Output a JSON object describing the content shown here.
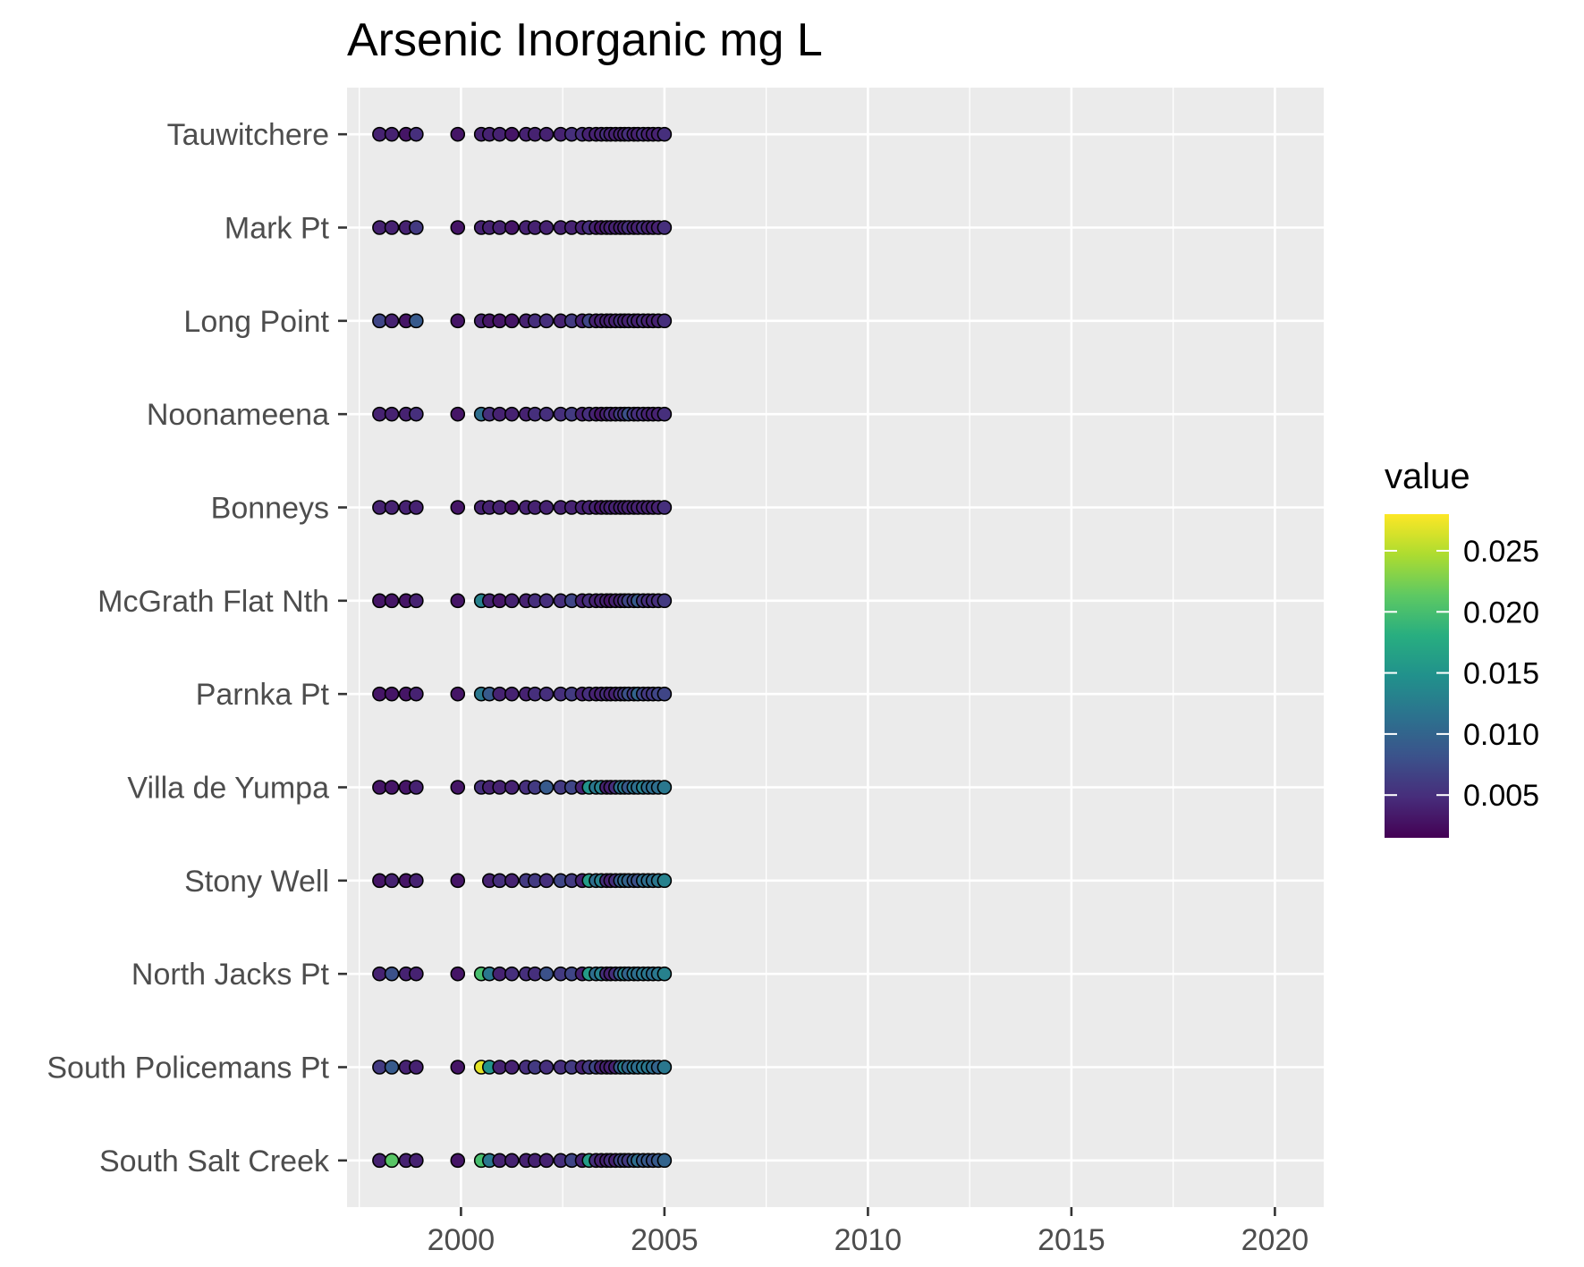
{
  "chart_data": {
    "type": "scatter",
    "title": "Arsenic Inorganic mg L",
    "xlabel": "",
    "ylabel": "",
    "xlim": [
      1997.2,
      2021.2
    ],
    "x_ticks": [
      2000,
      2005,
      2010,
      2015,
      2020
    ],
    "x_tick_labels": [
      "2000",
      "2005",
      "2010",
      "2015",
      "2020"
    ],
    "sites": [
      "Tauwitchere",
      "Mark Pt",
      "Long Point",
      "Noonameena",
      "Bonneys",
      "McGrath Flat Nth",
      "Parnka Pt",
      "Villa de Yumpa",
      "Stony Well",
      "North Jacks Pt",
      "South Policemans Pt",
      "South Salt Creek"
    ],
    "sample_dates": [
      1998.0,
      1998.3,
      1998.65,
      1998.9,
      1999.92,
      2000.5,
      2000.7,
      2000.95,
      2001.25,
      2001.6,
      2001.82,
      2002.1,
      2002.45,
      2002.72,
      2002.98,
      2003.15,
      2003.32,
      2003.45,
      2003.58,
      2003.68,
      2003.8,
      2003.92,
      2004.02,
      2004.12,
      2004.25,
      2004.35,
      2004.48,
      2004.6,
      2004.72,
      2004.85,
      2005.0
    ],
    "values": {
      "Tauwitchere": [
        0.004,
        0.004,
        0.003,
        0.005,
        0.003,
        0.004,
        0.004,
        0.004,
        0.003,
        0.004,
        0.004,
        0.004,
        0.004,
        0.005,
        0.005,
        0.004,
        0.004,
        0.004,
        0.005,
        0.004,
        0.004,
        0.004,
        0.004,
        0.005,
        0.004,
        0.004,
        0.005,
        0.004,
        0.004,
        0.004,
        0.005
      ],
      "Mark Pt": [
        0.004,
        0.004,
        0.004,
        0.006,
        0.003,
        0.004,
        0.004,
        0.004,
        0.003,
        0.004,
        0.004,
        0.004,
        0.004,
        0.004,
        0.004,
        0.005,
        0.004,
        0.003,
        0.004,
        0.004,
        0.004,
        0.004,
        0.004,
        0.005,
        0.004,
        0.004,
        0.005,
        0.004,
        0.004,
        0.004,
        0.005
      ],
      "Long Point": [
        0.007,
        0.004,
        0.003,
        0.009,
        0.003,
        0.004,
        0.003,
        0.003,
        0.003,
        0.004,
        0.005,
        0.005,
        0.004,
        0.006,
        0.004,
        0.007,
        0.004,
        0.004,
        0.004,
        0.004,
        0.004,
        0.005,
        0.004,
        0.004,
        0.005,
        0.004,
        0.005,
        0.004,
        0.004,
        0.004,
        0.005
      ],
      "Noonameena": [
        0.004,
        0.004,
        0.004,
        0.005,
        0.003,
        0.011,
        0.005,
        0.004,
        0.004,
        0.004,
        0.005,
        0.005,
        0.005,
        0.006,
        0.004,
        0.005,
        0.004,
        0.003,
        0.004,
        0.005,
        0.004,
        0.006,
        0.005,
        0.008,
        0.006,
        0.005,
        0.005,
        0.004,
        0.004,
        0.004,
        0.005
      ],
      "Bonneys": [
        0.004,
        0.004,
        0.004,
        0.004,
        0.003,
        0.004,
        0.004,
        0.004,
        0.003,
        0.004,
        0.004,
        0.004,
        0.004,
        0.004,
        0.004,
        0.004,
        0.004,
        0.003,
        0.004,
        0.004,
        0.004,
        0.004,
        0.004,
        0.004,
        0.004,
        0.004,
        0.004,
        0.004,
        0.004,
        0.004,
        0.005
      ],
      "McGrath Flat Nth": [
        0.003,
        0.003,
        0.003,
        0.004,
        0.003,
        0.013,
        0.004,
        0.003,
        0.004,
        0.004,
        0.005,
        0.005,
        0.005,
        0.007,
        0.004,
        0.005,
        0.004,
        0.004,
        0.004,
        0.003,
        0.004,
        0.004,
        0.005,
        0.007,
        0.006,
        0.009,
        0.006,
        0.005,
        0.005,
        0.005,
        0.006
      ],
      "Parnka Pt": [
        0.003,
        0.003,
        0.003,
        0.004,
        0.003,
        0.012,
        0.009,
        0.004,
        0.004,
        0.004,
        0.005,
        0.005,
        0.005,
        0.006,
        0.004,
        0.005,
        0.004,
        0.004,
        0.005,
        0.004,
        0.004,
        0.005,
        0.006,
        0.008,
        0.006,
        0.01,
        0.007,
        0.006,
        0.006,
        0.007,
        0.007
      ],
      "Villa de Yumpa": [
        0.003,
        0.003,
        0.003,
        0.004,
        0.003,
        0.005,
        0.004,
        0.004,
        0.004,
        0.005,
        0.006,
        0.009,
        0.006,
        0.007,
        0.004,
        0.015,
        0.012,
        0.013,
        0.004,
        0.004,
        0.005,
        0.011,
        0.012,
        0.009,
        0.012,
        0.011,
        0.013,
        0.011,
        0.011,
        0.011,
        0.012
      ],
      "Stony Well": [
        0.003,
        0.004,
        0.003,
        0.004,
        0.003,
        null,
        0.004,
        0.005,
        0.004,
        0.006,
        0.006,
        0.005,
        0.007,
        0.006,
        0.004,
        0.016,
        0.011,
        0.013,
        0.005,
        0.004,
        0.005,
        0.009,
        0.011,
        0.01,
        0.009,
        0.008,
        0.011,
        0.011,
        0.011,
        0.012,
        0.013
      ],
      "North Jacks Pt": [
        0.004,
        0.008,
        0.004,
        0.004,
        0.003,
        0.02,
        0.012,
        0.004,
        0.005,
        0.005,
        0.005,
        0.008,
        0.006,
        0.007,
        0.004,
        0.016,
        0.011,
        0.013,
        0.005,
        0.004,
        0.005,
        0.009,
        0.013,
        0.01,
        0.012,
        0.011,
        0.012,
        0.012,
        0.011,
        0.012,
        0.013
      ],
      "South Policemans Pt": [
        0.006,
        0.009,
        0.004,
        0.004,
        0.003,
        0.027,
        0.015,
        0.004,
        0.004,
        0.005,
        0.006,
        0.005,
        0.005,
        0.006,
        0.004,
        0.006,
        0.007,
        0.004,
        0.004,
        0.004,
        0.004,
        0.009,
        0.013,
        0.01,
        0.012,
        0.011,
        0.012,
        0.012,
        0.011,
        0.01,
        0.012
      ],
      "South Salt Creek": [
        0.004,
        0.021,
        0.004,
        0.004,
        0.003,
        0.02,
        0.012,
        0.004,
        0.004,
        0.004,
        0.004,
        0.004,
        0.005,
        0.007,
        0.004,
        0.016,
        0.005,
        0.004,
        0.004,
        0.005,
        0.004,
        0.007,
        0.007,
        0.006,
        0.009,
        0.011,
        0.009,
        0.009,
        0.008,
        0.009,
        0.01
      ]
    },
    "color_scale": {
      "title": "value",
      "type": "viridis",
      "limits": [
        0.0015,
        0.028
      ],
      "breaks": [
        0.005,
        0.01,
        0.015,
        0.02,
        0.025
      ],
      "break_labels": [
        "0.005",
        "0.010",
        "0.015",
        "0.020",
        "0.025"
      ]
    },
    "panel_color": "#EBEBEB",
    "grid": true,
    "legend_position": "right"
  }
}
